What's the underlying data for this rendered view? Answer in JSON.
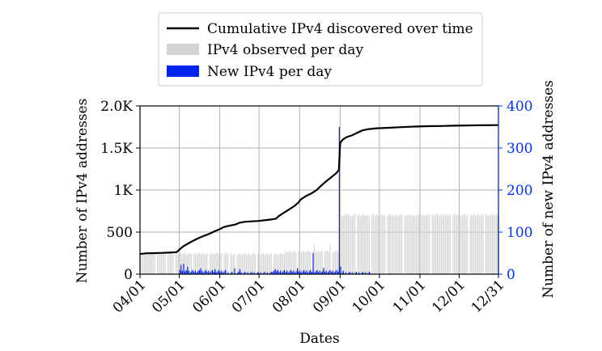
{
  "chart_data": {
    "type": "bar",
    "ylabel_left": "Number of IPv4 addresses",
    "ylabel_right": "Number of new IPv4 addresses",
    "xlabel": "Dates",
    "x_tick_labels": [
      "04/01",
      "05/01",
      "06/01",
      "07/01",
      "08/01",
      "09/01",
      "10/01",
      "11/01",
      "12/01",
      "12/31"
    ],
    "x_tick_days": [
      0,
      30,
      61,
      91,
      122,
      153,
      183,
      214,
      244,
      274
    ],
    "y_left": {
      "ticks": [
        0,
        500,
        1000,
        1500,
        2000
      ],
      "labels": [
        "0",
        "500",
        "1K",
        "1.5K",
        "2.0K"
      ],
      "range": [
        0,
        2000
      ]
    },
    "y_right": {
      "ticks": [
        0,
        100,
        200,
        300,
        400
      ],
      "labels": [
        "0",
        "100",
        "200",
        "300",
        "400"
      ],
      "range": [
        0,
        400
      ]
    },
    "grid": true,
    "legend_position": "top-center",
    "series": [
      {
        "name": "Cumulative IPv4 discovered over time",
        "type": "line",
        "axis": "left",
        "color": "#000000",
        "points": [
          [
            0,
            240
          ],
          [
            5,
            248
          ],
          [
            10,
            250
          ],
          [
            15,
            252
          ],
          [
            20,
            255
          ],
          [
            28,
            262
          ],
          [
            30,
            290
          ],
          [
            33,
            330
          ],
          [
            38,
            375
          ],
          [
            43,
            415
          ],
          [
            48,
            450
          ],
          [
            53,
            480
          ],
          [
            57,
            510
          ],
          [
            61,
            535
          ],
          [
            64,
            560
          ],
          [
            68,
            575
          ],
          [
            73,
            590
          ],
          [
            76,
            612
          ],
          [
            80,
            622
          ],
          [
            85,
            628
          ],
          [
            90,
            632
          ],
          [
            95,
            640
          ],
          [
            100,
            650
          ],
          [
            104,
            660
          ],
          [
            106,
            690
          ],
          [
            110,
            730
          ],
          [
            114,
            770
          ],
          [
            118,
            810
          ],
          [
            121,
            850
          ],
          [
            123,
            890
          ],
          [
            127,
            930
          ],
          [
            131,
            960
          ],
          [
            135,
            1000
          ],
          [
            138,
            1045
          ],
          [
            142,
            1100
          ],
          [
            146,
            1150
          ],
          [
            150,
            1200
          ],
          [
            152,
            1240
          ],
          [
            153,
            1560
          ],
          [
            155,
            1600
          ],
          [
            158,
            1630
          ],
          [
            162,
            1650
          ],
          [
            166,
            1680
          ],
          [
            170,
            1710
          ],
          [
            175,
            1725
          ],
          [
            181,
            1735
          ],
          [
            190,
            1740
          ],
          [
            200,
            1748
          ],
          [
            210,
            1755
          ],
          [
            220,
            1760
          ],
          [
            230,
            1762
          ],
          [
            240,
            1765
          ],
          [
            250,
            1768
          ],
          [
            260,
            1770
          ],
          [
            274,
            1772
          ]
        ]
      },
      {
        "name": "IPv4 observed per day",
        "type": "bar",
        "axis": "left",
        "color": "#d3d3d3",
        "segments": [
          {
            "from": 0,
            "to": 30,
            "value": 245,
            "gaps": [
              12,
              20,
              26
            ]
          },
          {
            "from": 31,
            "to": 69,
            "value": 245,
            "gaps": [
              40,
              52,
              63,
              68
            ]
          },
          {
            "from": 70,
            "to": 110,
            "value": 240,
            "gaps": [
              73,
              89,
              101
            ]
          },
          {
            "from": 111,
            "to": 152,
            "value": 270,
            "gaps": [
              120,
              131,
              140,
              146
            ]
          },
          {
            "from": 153,
            "to": 212,
            "value": 700,
            "gaps": [
              165,
              176,
              188,
              201
            ]
          },
          {
            "from": 213,
            "to": 274,
            "value": 705,
            "gaps": [
              222,
              238,
              251,
              263
            ]
          }
        ],
        "spikes": [
          [
            133,
            350
          ],
          [
            145,
            360
          ],
          [
            158,
            720
          ],
          [
            190,
            715
          ]
        ]
      },
      {
        "name": "New IPv4 per day",
        "type": "bar",
        "axis": "right",
        "color": "#0022ee",
        "segments": [
          {
            "from": 0,
            "to": 29,
            "value": 1
          },
          {
            "from": 30,
            "to": 65,
            "value": 10
          },
          {
            "from": 66,
            "to": 100,
            "value": 6
          },
          {
            "from": 101,
            "to": 151,
            "value": 10
          },
          {
            "from": 152,
            "to": 176,
            "value": 6
          },
          {
            "from": 177,
            "to": 274,
            "value": 0
          }
        ],
        "spikes": [
          [
            31,
            22
          ],
          [
            33,
            25
          ],
          [
            36,
            18
          ],
          [
            46,
            14
          ],
          [
            57,
            12
          ],
          [
            72,
            14
          ],
          [
            76,
            12
          ],
          [
            103,
            12
          ],
          [
            120,
            14
          ],
          [
            132,
            50
          ],
          [
            140,
            15
          ],
          [
            152,
            350
          ],
          [
            153,
            18
          ],
          [
            155,
            8
          ]
        ]
      }
    ]
  }
}
